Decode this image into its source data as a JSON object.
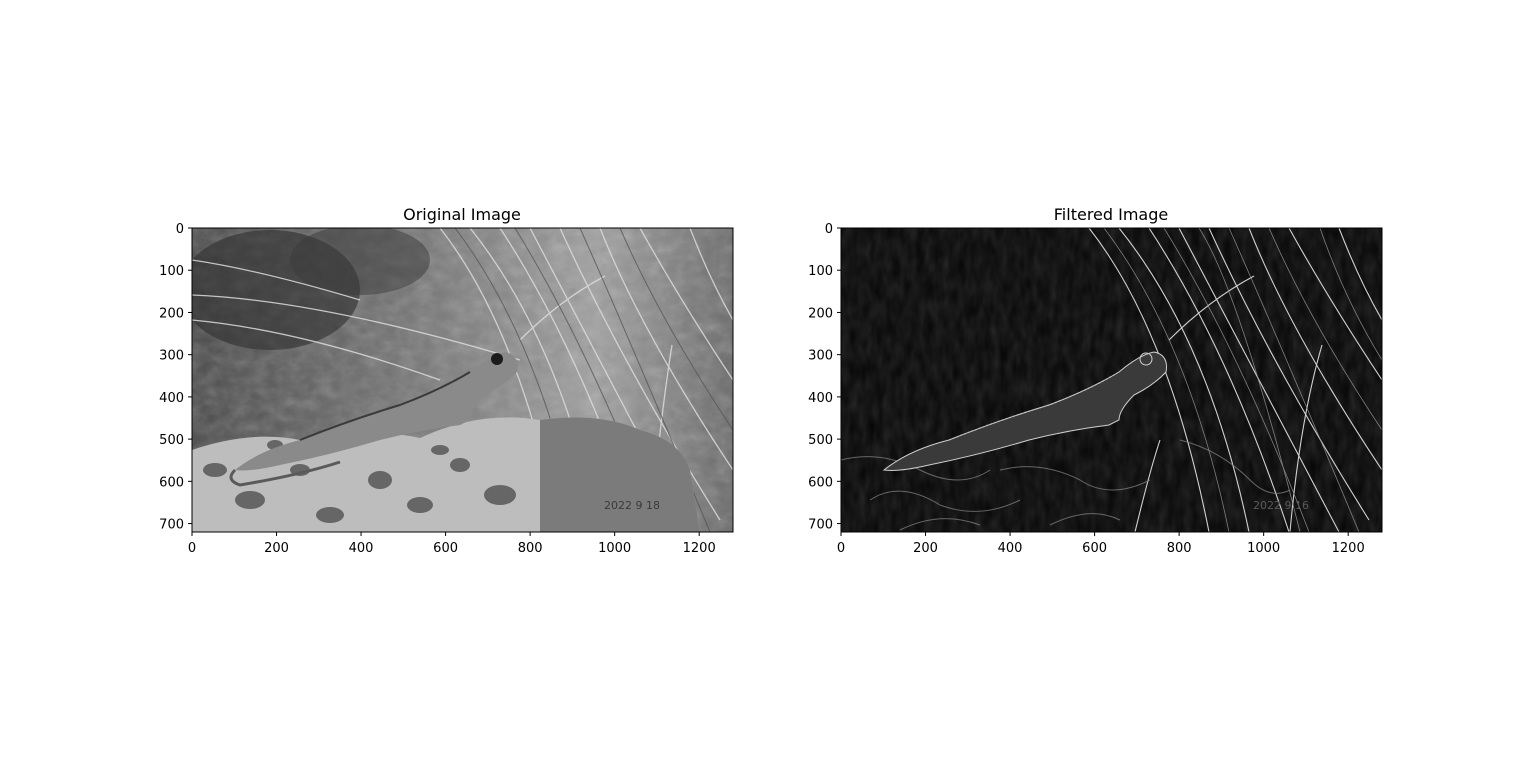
{
  "panels": [
    {
      "title": "Original Image",
      "xticks": [
        "0",
        "200",
        "400",
        "600",
        "800",
        "1000",
        "1200"
      ],
      "yticks": [
        "0",
        "100",
        "200",
        "300",
        "400",
        "500",
        "600",
        "700"
      ],
      "x_range": [
        0,
        1280
      ],
      "y_range": [
        0,
        720
      ],
      "stamp": "2022 9 18"
    },
    {
      "title": "Filtered Image",
      "xticks": [
        "0",
        "200",
        "400",
        "600",
        "800",
        "1000",
        "1200"
      ],
      "yticks": [
        "0",
        "100",
        "200",
        "300",
        "400",
        "500",
        "600",
        "700"
      ],
      "x_range": [
        0,
        1280
      ],
      "y_range": [
        0,
        720
      ],
      "stamp": "2022 9 16"
    }
  ]
}
